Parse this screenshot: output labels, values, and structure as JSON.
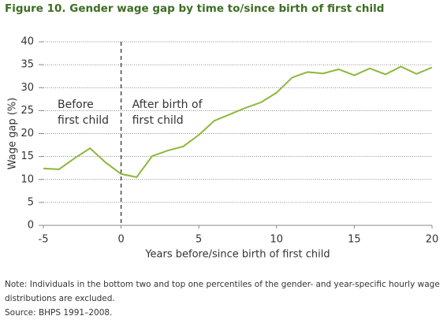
{
  "chart_data": {
    "type": "line",
    "title": "Figure 10. Gender wage gap by time to/since birth of first child",
    "x_label": "Years before/since birth of first child",
    "y_label": "Wage gap (%)",
    "x": [
      -5,
      -4,
      -3,
      -2,
      -1,
      0,
      1,
      2,
      3,
      4,
      5,
      6,
      7,
      8,
      9,
      10,
      11,
      12,
      13,
      14,
      15,
      16,
      17,
      18,
      19,
      20
    ],
    "series": [
      {
        "name": "Wage gap",
        "color": "#8cb83a",
        "values": [
          12.4,
          12.2,
          14.6,
          16.8,
          13.7,
          11.2,
          10.5,
          15.1,
          16.3,
          17.2,
          19.7,
          22.8,
          24.2,
          25.6,
          26.8,
          28.9,
          32.2,
          33.4,
          33.1,
          34.0,
          32.7,
          34.2,
          32.9,
          34.6,
          33.0,
          34.4
        ]
      }
    ],
    "xlim": [
      -5,
      20
    ],
    "xticks": [
      -5,
      0,
      5,
      10,
      15,
      20
    ],
    "ylim": [
      0,
      40
    ],
    "yticks": [
      0,
      5,
      10,
      15,
      20,
      25,
      30,
      35,
      40
    ],
    "grid": true,
    "divider_x": 0,
    "annotations": [
      [
        "Before",
        "first child"
      ],
      [
        "After birth of",
        "first child"
      ]
    ],
    "note": "Note: Individuals in the bottom two and top one percentiles of the gender- and year-specific hourly wage distributions are excluded.",
    "source": "Source: BHPS 1991–2008."
  }
}
